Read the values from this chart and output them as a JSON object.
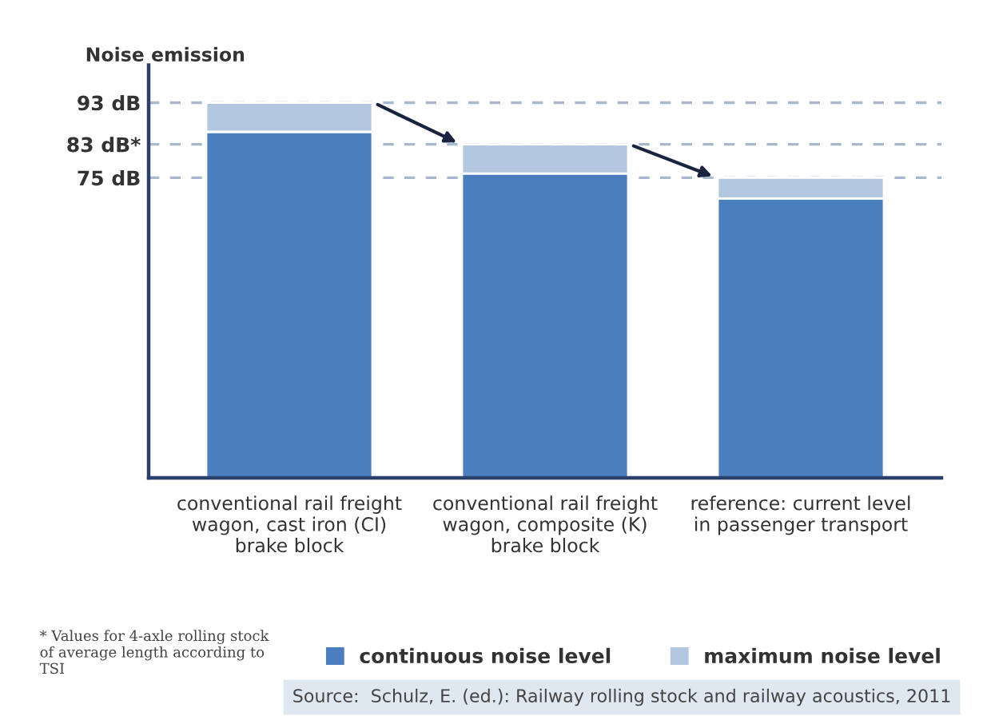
{
  "chart_data": {
    "type": "bar",
    "stacked": true,
    "ylabel": "Noise emission",
    "categories": [
      "conventional rail freight\nwagon, cast iron (CI)\nbrake block",
      "conventional rail freight\nwagon, composite (K)\nbrake block",
      "reference: current level\nin passenger transport"
    ],
    "series": [
      {
        "name": "continuous noise level",
        "color": "#4a7ebf",
        "values": [
          86,
          76,
          70
        ]
      },
      {
        "name": "maximum noise level",
        "color": "#b4c7e0",
        "values": [
          7,
          7,
          5
        ]
      }
    ],
    "ylim": [
      3,
      102
    ],
    "yticks": [
      {
        "value": 93,
        "label": "93 dB"
      },
      {
        "value": 83,
        "label": "83 dB*"
      },
      {
        "value": 75,
        "label": "75 dB"
      }
    ],
    "ref_lines": [
      {
        "axis": "y",
        "value": 93,
        "color": "#a9b8cc",
        "line_style": "dashed"
      },
      {
        "axis": "y",
        "value": 83,
        "color": "#a9b8cc",
        "line_style": "dashed"
      },
      {
        "axis": "y",
        "value": 75,
        "color": "#a9b8cc",
        "line_style": "dashed"
      }
    ],
    "grid": false,
    "legend": "bottom",
    "annotations": [
      "* Values for 4-axle rolling stock of average length according to TSI",
      "Source:  Schulz, E. (ed.): Railway rolling stock and railway acoustics, 2011"
    ]
  }
}
